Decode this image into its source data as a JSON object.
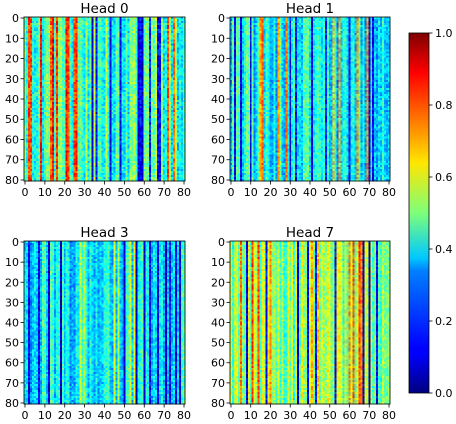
{
  "chart_data": [
    {
      "type": "heatmap",
      "title": "Head 0",
      "x_ticks": [
        "0",
        "10",
        "20",
        "30",
        "40",
        "50",
        "60",
        "70",
        "80"
      ],
      "y_ticks": [
        "0",
        "10",
        "20",
        "30",
        "40",
        "50",
        "60",
        "70",
        "80"
      ],
      "xlim": [
        0,
        80
      ],
      "ylim": [
        0,
        80
      ],
      "grid": false,
      "cells": "81x81 per-column attention pattern",
      "col_pattern": {
        "base": 0.45,
        "high_cols": [
          2,
          3,
          8,
          13,
          14,
          16,
          21,
          22,
          25,
          26,
          72,
          75
        ],
        "high_value": 0.82,
        "low_cols": [
          34,
          36,
          43,
          48,
          57,
          58,
          59,
          63,
          67,
          68
        ],
        "low_value": 0.12,
        "noise": 0.08
      }
    },
    {
      "type": "heatmap",
      "title": "Head 1",
      "x_ticks": [
        "0",
        "10",
        "20",
        "30",
        "40",
        "50",
        "60",
        "70",
        "80"
      ],
      "y_ticks": [
        "0",
        "10",
        "20",
        "30",
        "40",
        "50",
        "60",
        "70",
        "80"
      ],
      "xlim": [
        0,
        80
      ],
      "ylim": [
        0,
        80
      ],
      "grid": false,
      "cells": "81x81 per-column attention pattern",
      "col_pattern": {
        "base": 0.38,
        "high_cols": [
          15,
          16,
          24,
          28,
          52,
          55,
          64,
          69
        ],
        "high_value": 0.72,
        "low_cols": [
          2,
          5,
          10,
          30,
          33,
          41,
          48,
          60,
          70,
          72
        ],
        "low_value": 0.13,
        "noise": 0.07
      }
    },
    {
      "type": "heatmap",
      "title": "Head 3",
      "x_ticks": [
        "0",
        "10",
        "20",
        "30",
        "40",
        "50",
        "60",
        "70",
        "80"
      ],
      "y_ticks": [
        "0",
        "10",
        "20",
        "30",
        "40",
        "50",
        "60",
        "70",
        "80"
      ],
      "xlim": [
        0,
        80
      ],
      "ylim": [
        0,
        80
      ],
      "grid": false,
      "cells": "81x81 per-column attention pattern",
      "col_pattern": {
        "base": 0.36,
        "high_cols": [
          28,
          30,
          45,
          47,
          53,
          55
        ],
        "high_value": 0.55,
        "low_cols": [
          2,
          7,
          12,
          18,
          50,
          56,
          60,
          63,
          67,
          71,
          73,
          76,
          78
        ],
        "low_value": 0.1,
        "noise": 0.07
      }
    },
    {
      "type": "heatmap",
      "title": "Head 7",
      "x_ticks": [
        "0",
        "10",
        "20",
        "30",
        "40",
        "50",
        "60",
        "70",
        "80"
      ],
      "y_ticks": [
        "0",
        "10",
        "20",
        "30",
        "40",
        "50",
        "60",
        "70",
        "80"
      ],
      "xlim": [
        0,
        80
      ],
      "ylim": [
        0,
        80
      ],
      "grid": false,
      "cells": "81x81 per-column attention pattern",
      "col_pattern": {
        "base": 0.52,
        "high_cols": [
          5,
          11,
          14,
          20,
          41,
          44,
          60,
          62,
          65,
          66
        ],
        "high_value": 0.75,
        "low_cols": [
          8,
          18,
          34,
          39,
          43,
          53,
          67,
          70,
          74
        ],
        "low_value": 0.1,
        "noise": 0.07
      }
    }
  ],
  "colorbar": {
    "colormap": "jet",
    "range": [
      0.0,
      1.0
    ],
    "ticks": [
      "0.0",
      "0.2",
      "0.4",
      "0.6",
      "0.8",
      "1.0"
    ]
  }
}
